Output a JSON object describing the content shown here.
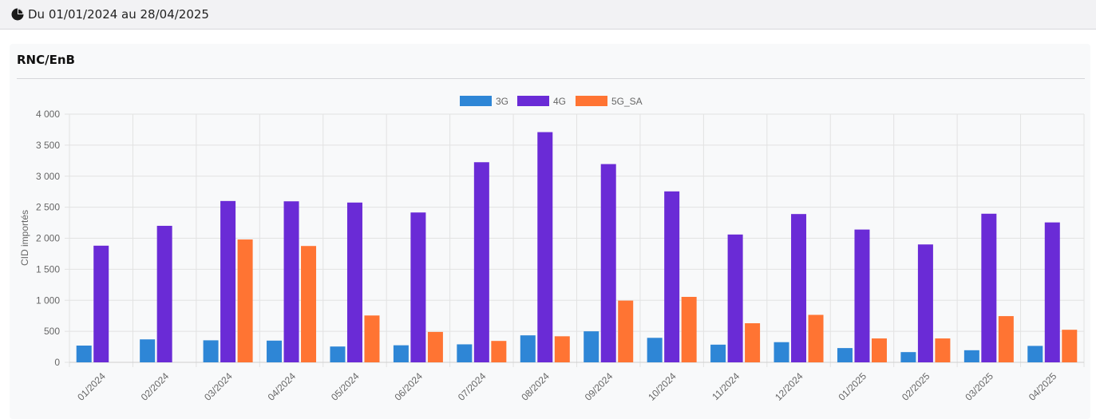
{
  "header": {
    "date_range": "Du 01/01/2024 au 28/04/2025",
    "icon": "pie-chart-icon"
  },
  "card": {
    "title": "RNC/EnB"
  },
  "chart_data": {
    "type": "bar",
    "ylabel": "CID importés",
    "xlabel": "",
    "ylim": [
      0,
      4000
    ],
    "yticks": [
      "0",
      "500",
      "1 000",
      "1 500",
      "2 000",
      "2 500",
      "3 000",
      "3 500",
      "4 000"
    ],
    "ytick_values": [
      0,
      500,
      1000,
      1500,
      2000,
      2500,
      3000,
      3500,
      4000
    ],
    "grid": true,
    "legend_position": "top",
    "categories": [
      "01/2024",
      "02/2024",
      "03/2024",
      "04/2024",
      "05/2024",
      "06/2024",
      "07/2024",
      "08/2024",
      "09/2024",
      "10/2024",
      "11/2024",
      "12/2024",
      "01/2025",
      "02/2025",
      "03/2025",
      "04/2025"
    ],
    "series": [
      {
        "name": "3G",
        "color": "#2e86d6",
        "values": [
          270,
          370,
          355,
          350,
          255,
          275,
          290,
          435,
          500,
          395,
          285,
          325,
          230,
          165,
          195,
          265
        ]
      },
      {
        "name": "4G",
        "color": "#6a2bd6",
        "values": [
          1880,
          2200,
          2600,
          2595,
          2575,
          2415,
          3225,
          3710,
          3195,
          2755,
          2060,
          2390,
          2140,
          1900,
          2395,
          2255
        ]
      },
      {
        "name": "5G_SA",
        "color": "#ff7433",
        "values": [
          0,
          0,
          1980,
          1875,
          755,
          490,
          345,
          420,
          995,
          1055,
          630,
          765,
          385,
          385,
          745,
          525
        ]
      }
    ]
  }
}
